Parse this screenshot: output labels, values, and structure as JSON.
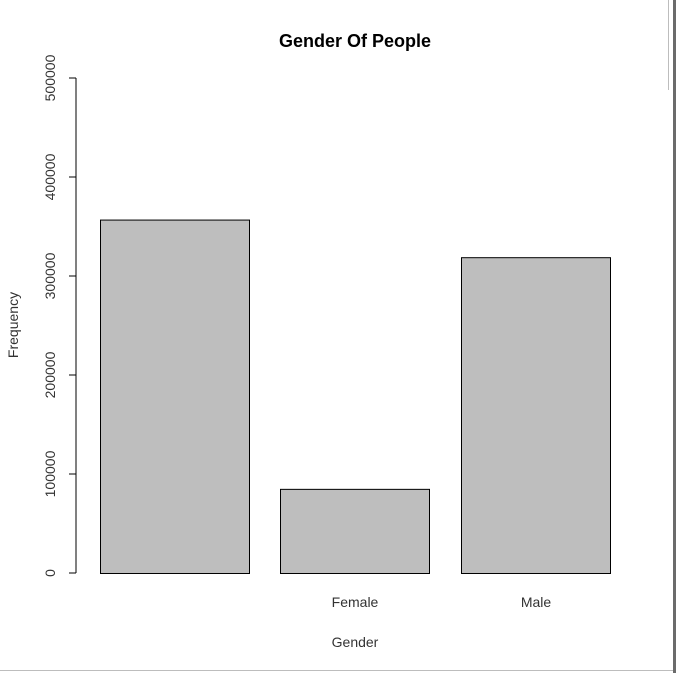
{
  "chart_data": {
    "type": "bar",
    "title": "Gender Of People",
    "xlabel": "Gender",
    "ylabel": "Frequency",
    "categories": [
      "",
      "Female",
      "Male"
    ],
    "values": [
      357000,
      85000,
      319000
    ],
    "ylim": [
      0,
      500000
    ],
    "yticks": [
      0,
      100000,
      200000,
      300000,
      400000,
      500000
    ],
    "ytick_labels": [
      "0",
      "100000",
      "200000",
      "300000",
      "400000",
      "500000"
    ],
    "bar_fill": "#bebebe",
    "bar_stroke": "#000000",
    "grid": false,
    "legend": "none"
  }
}
